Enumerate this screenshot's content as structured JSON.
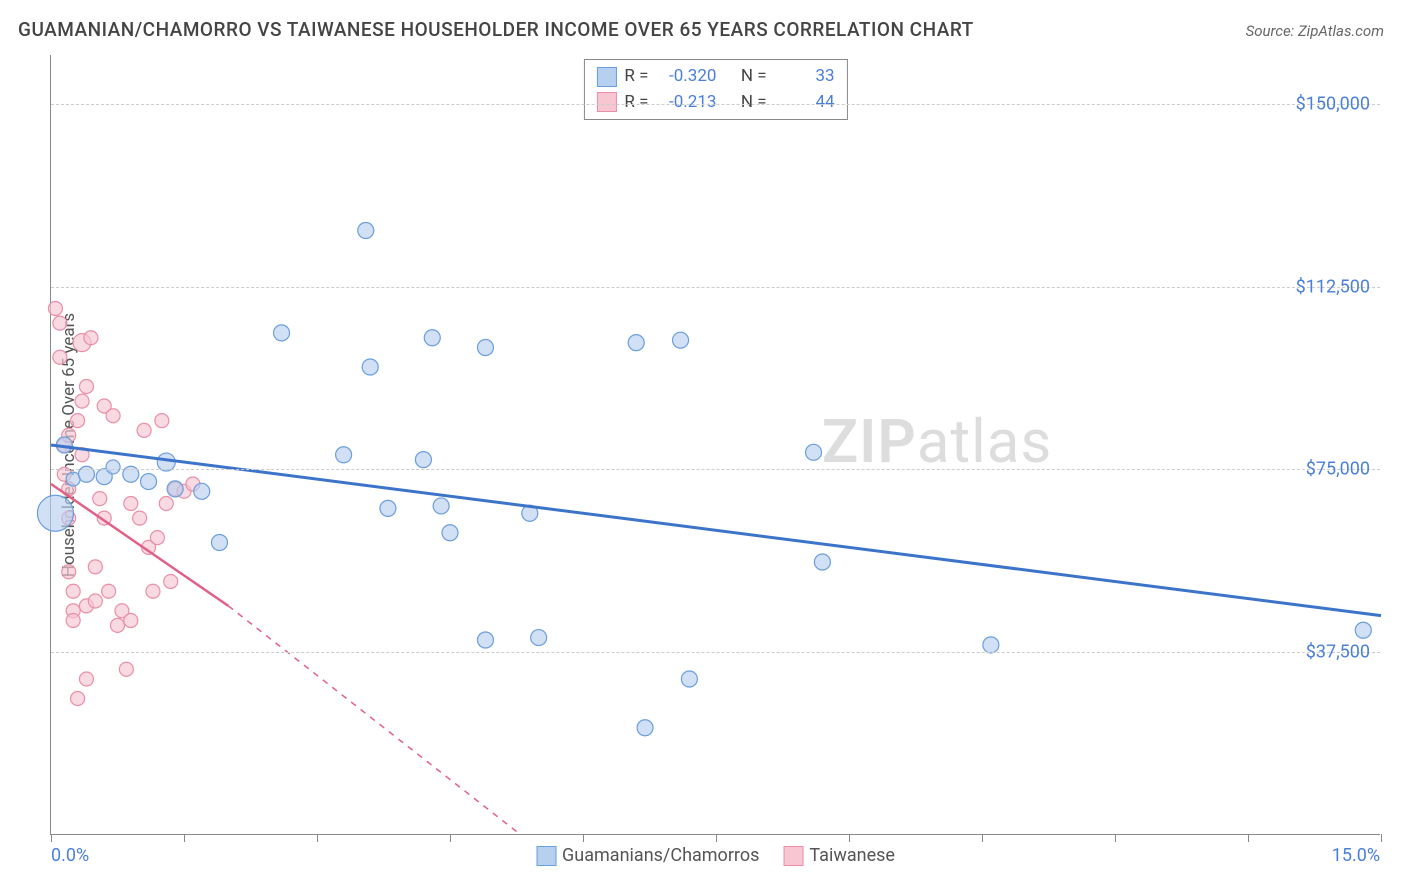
{
  "title": "GUAMANIAN/CHAMORRO VS TAIWANESE HOUSEHOLDER INCOME OVER 65 YEARS CORRELATION CHART",
  "source": "Source: ZipAtlas.com",
  "y_axis_label": "Householder Income Over 65 years",
  "watermark_bold": "ZIP",
  "watermark_light": "atlas",
  "chart": {
    "type": "scatter",
    "xlim": [
      0,
      15
    ],
    "ylim": [
      0,
      160000
    ],
    "x_tick_positions": [
      0,
      1.5,
      3,
      4.5,
      6,
      7.5,
      9,
      10.5,
      12,
      13.5,
      15
    ],
    "x_start_label": "0.0%",
    "x_end_label": "15.0%",
    "y_ticks": [
      {
        "v": 37500,
        "label": "$37,500"
      },
      {
        "v": 75000,
        "label": "$75,000"
      },
      {
        "v": 112500,
        "label": "$112,500"
      },
      {
        "v": 150000,
        "label": "$150,000"
      }
    ],
    "background_color": "#ffffff",
    "grid_color": "#cccccc",
    "axis_color": "#888888"
  },
  "series": {
    "guamanian": {
      "label": "Guamanians/Chamorros",
      "fill": "#b8d0f0",
      "stroke": "#6a9edc",
      "line_color": "#3b74c9",
      "line_width": 3,
      "R": "-0.320",
      "N": "33",
      "trend": {
        "x1": 0,
        "y1": 80000,
        "x2": 15,
        "y2": 45000
      },
      "points": [
        {
          "x": 0.05,
          "y": 66000,
          "r": 18
        },
        {
          "x": 0.15,
          "y": 80000,
          "r": 8
        },
        {
          "x": 0.25,
          "y": 73000,
          "r": 7
        },
        {
          "x": 0.4,
          "y": 74000,
          "r": 8
        },
        {
          "x": 0.6,
          "y": 73500,
          "r": 8
        },
        {
          "x": 0.7,
          "y": 75500,
          "r": 7
        },
        {
          "x": 0.9,
          "y": 74000,
          "r": 8
        },
        {
          "x": 1.1,
          "y": 72500,
          "r": 8
        },
        {
          "x": 1.3,
          "y": 76500,
          "r": 9
        },
        {
          "x": 1.4,
          "y": 71000,
          "r": 8
        },
        {
          "x": 1.7,
          "y": 70500,
          "r": 8
        },
        {
          "x": 1.9,
          "y": 60000,
          "r": 8
        },
        {
          "x": 2.6,
          "y": 103000,
          "r": 8
        },
        {
          "x": 3.3,
          "y": 78000,
          "r": 8
        },
        {
          "x": 3.55,
          "y": 124000,
          "r": 8
        },
        {
          "x": 3.6,
          "y": 96000,
          "r": 8
        },
        {
          "x": 3.8,
          "y": 67000,
          "r": 8
        },
        {
          "x": 4.3,
          "y": 102000,
          "r": 8
        },
        {
          "x": 4.2,
          "y": 77000,
          "r": 8
        },
        {
          "x": 4.4,
          "y": 67500,
          "r": 8
        },
        {
          "x": 4.5,
          "y": 62000,
          "r": 8
        },
        {
          "x": 4.9,
          "y": 100000,
          "r": 8
        },
        {
          "x": 4.9,
          "y": 40000,
          "r": 8
        },
        {
          "x": 5.4,
          "y": 66000,
          "r": 8
        },
        {
          "x": 5.5,
          "y": 40500,
          "r": 8
        },
        {
          "x": 6.6,
          "y": 101000,
          "r": 8
        },
        {
          "x": 6.7,
          "y": 22000,
          "r": 8
        },
        {
          "x": 7.1,
          "y": 101500,
          "r": 8
        },
        {
          "x": 7.2,
          "y": 32000,
          "r": 8
        },
        {
          "x": 8.6,
          "y": 78500,
          "r": 8
        },
        {
          "x": 8.7,
          "y": 56000,
          "r": 8
        },
        {
          "x": 10.6,
          "y": 39000,
          "r": 8
        },
        {
          "x": 14.8,
          "y": 42000,
          "r": 8
        }
      ]
    },
    "taiwanese": {
      "label": "Taiwanese",
      "fill": "#f7c6d2",
      "stroke": "#e98fa8",
      "line_color": "#e06088",
      "line_width": 2.5,
      "R": "-0.213",
      "N": "44",
      "trend_solid": {
        "x1": 0,
        "y1": 72000,
        "x2": 2.0,
        "y2": 47000
      },
      "trend_dash": {
        "x1": 2.0,
        "y1": 47000,
        "x2": 5.3,
        "y2": 0
      },
      "points": [
        {
          "x": 0.05,
          "y": 108000,
          "r": 7
        },
        {
          "x": 0.1,
          "y": 98000,
          "r": 7
        },
        {
          "x": 0.1,
          "y": 105000,
          "r": 7
        },
        {
          "x": 0.15,
          "y": 80000,
          "r": 7
        },
        {
          "x": 0.15,
          "y": 74000,
          "r": 7
        },
        {
          "x": 0.2,
          "y": 82000,
          "r": 7
        },
        {
          "x": 0.2,
          "y": 71000,
          "r": 7
        },
        {
          "x": 0.2,
          "y": 65000,
          "r": 7
        },
        {
          "x": 0.2,
          "y": 54000,
          "r": 7
        },
        {
          "x": 0.25,
          "y": 50000,
          "r": 7
        },
        {
          "x": 0.25,
          "y": 46000,
          "r": 7
        },
        {
          "x": 0.25,
          "y": 44000,
          "r": 7
        },
        {
          "x": 0.3,
          "y": 85000,
          "r": 7
        },
        {
          "x": 0.3,
          "y": 28000,
          "r": 7
        },
        {
          "x": 0.35,
          "y": 101000,
          "r": 9
        },
        {
          "x": 0.35,
          "y": 89000,
          "r": 7
        },
        {
          "x": 0.35,
          "y": 78000,
          "r": 7
        },
        {
          "x": 0.4,
          "y": 92000,
          "r": 7
        },
        {
          "x": 0.4,
          "y": 47000,
          "r": 7
        },
        {
          "x": 0.4,
          "y": 32000,
          "r": 7
        },
        {
          "x": 0.45,
          "y": 102000,
          "r": 7
        },
        {
          "x": 0.5,
          "y": 55000,
          "r": 7
        },
        {
          "x": 0.5,
          "y": 48000,
          "r": 7
        },
        {
          "x": 0.55,
          "y": 69000,
          "r": 7
        },
        {
          "x": 0.6,
          "y": 88000,
          "r": 7
        },
        {
          "x": 0.6,
          "y": 65000,
          "r": 7
        },
        {
          "x": 0.65,
          "y": 50000,
          "r": 7
        },
        {
          "x": 0.7,
          "y": 86000,
          "r": 7
        },
        {
          "x": 0.75,
          "y": 43000,
          "r": 7
        },
        {
          "x": 0.8,
          "y": 46000,
          "r": 7
        },
        {
          "x": 0.85,
          "y": 34000,
          "r": 7
        },
        {
          "x": 0.9,
          "y": 68000,
          "r": 7
        },
        {
          "x": 0.9,
          "y": 44000,
          "r": 7
        },
        {
          "x": 1.0,
          "y": 65000,
          "r": 7
        },
        {
          "x": 1.05,
          "y": 83000,
          "r": 7
        },
        {
          "x": 1.1,
          "y": 59000,
          "r": 7
        },
        {
          "x": 1.15,
          "y": 50000,
          "r": 7
        },
        {
          "x": 1.2,
          "y": 61000,
          "r": 7
        },
        {
          "x": 1.25,
          "y": 85000,
          "r": 7
        },
        {
          "x": 1.3,
          "y": 68000,
          "r": 7
        },
        {
          "x": 1.35,
          "y": 52000,
          "r": 7
        },
        {
          "x": 1.4,
          "y": 71000,
          "r": 7
        },
        {
          "x": 1.5,
          "y": 70500,
          "r": 7
        },
        {
          "x": 1.6,
          "y": 72000,
          "r": 7
        }
      ]
    }
  },
  "stats_labels": {
    "R": "R =",
    "N": "N ="
  }
}
